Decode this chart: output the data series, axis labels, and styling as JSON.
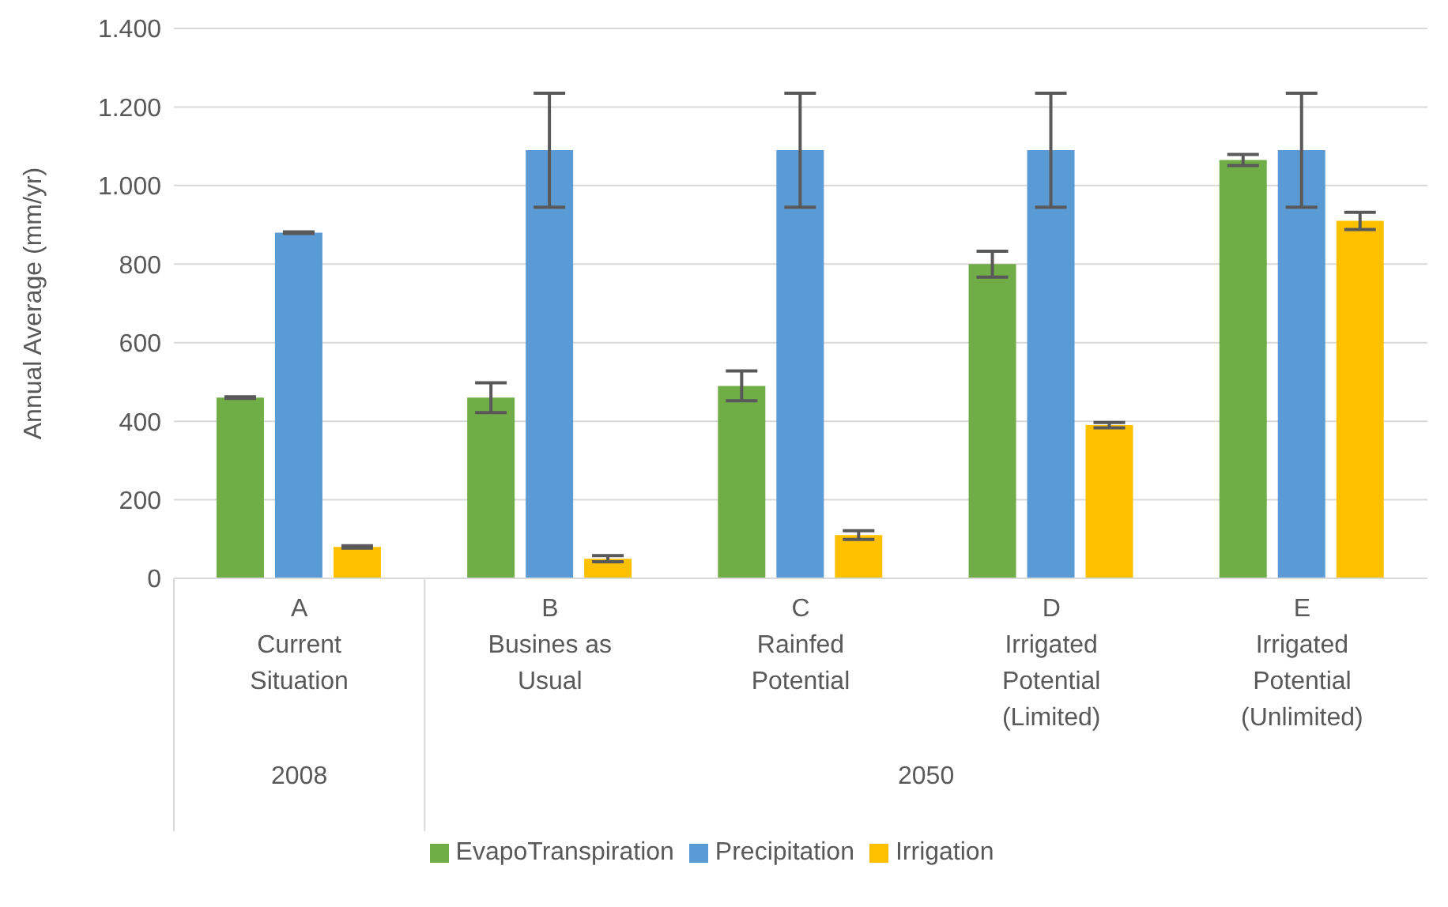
{
  "chart_data": {
    "type": "bar",
    "ylabel": "Annual Average (mm/yr)",
    "categories": [
      "A\nCurrent\nSituation",
      "B\nBusines as\nUsual",
      "C\nRainfed\nPotential",
      "D\nIrrigated\nPotential\n(Limited)",
      "E\nIrrigated\nPotential\n(Unlimited)"
    ],
    "series": [
      {
        "name": "EvapoTranspiration",
        "color": "#70ad47",
        "values": [
          460,
          460,
          490,
          800,
          1065
        ],
        "errors": [
          2,
          38,
          38,
          33,
          14
        ]
      },
      {
        "name": "Precipitation",
        "color": "#5b9bd5",
        "values": [
          880,
          1090,
          1090,
          1090,
          1090
        ],
        "errors": [
          2,
          145,
          145,
          145,
          145
        ]
      },
      {
        "name": "Irrigation",
        "color": "#ffc000",
        "values": [
          80,
          50,
          110,
          390,
          910
        ],
        "errors": [
          3,
          8,
          11,
          7,
          22
        ]
      }
    ],
    "ylim": [
      0,
      1400
    ],
    "yticks": [
      0,
      200,
      400,
      600,
      800,
      {
        "value": 1000,
        "label": "1.000"
      },
      {
        "value": 1200,
        "label": "1.200"
      },
      {
        "value": 1400,
        "label": "1.400"
      }
    ],
    "annotations": [
      "2008",
      "2050"
    ],
    "grid": "y",
    "legend": "bottom"
  }
}
